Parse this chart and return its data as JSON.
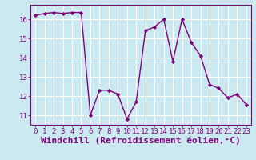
{
  "x": [
    0,
    1,
    2,
    3,
    4,
    5,
    6,
    7,
    8,
    9,
    10,
    11,
    12,
    13,
    14,
    15,
    16,
    17,
    18,
    19,
    20,
    21,
    22,
    23
  ],
  "y": [
    16.2,
    16.3,
    16.35,
    16.3,
    16.35,
    16.35,
    11.0,
    12.3,
    12.3,
    12.1,
    10.8,
    11.7,
    15.4,
    15.6,
    16.0,
    13.8,
    16.0,
    14.8,
    14.1,
    12.6,
    12.4,
    11.9,
    12.1,
    11.55
  ],
  "line_color": "#800080",
  "marker": "D",
  "marker_size": 2.2,
  "bg_color": "#cbe9f0",
  "grid_color": "#ffffff",
  "xlabel": "Windchill (Refroidissement éolien,°C)",
  "xlabel_color": "#800080",
  "tick_color": "#800080",
  "ylim": [
    10.5,
    16.75
  ],
  "yticks": [
    11,
    12,
    13,
    14,
    15,
    16
  ],
  "xticks": [
    0,
    1,
    2,
    3,
    4,
    5,
    6,
    7,
    8,
    9,
    10,
    11,
    12,
    13,
    14,
    15,
    16,
    17,
    18,
    19,
    20,
    21,
    22,
    23
  ],
  "tick_fontsize": 6.5,
  "xlabel_fontsize": 8.0,
  "linewidth": 1.0
}
